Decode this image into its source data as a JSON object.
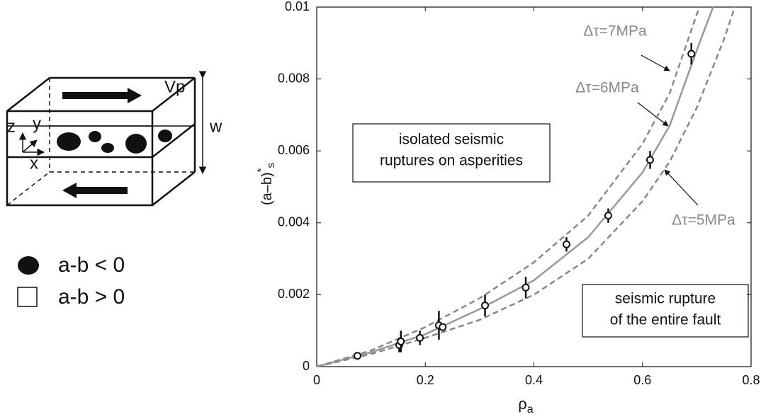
{
  "diagram": {
    "labels": {
      "vp": "Vp",
      "w": "w",
      "z": "z",
      "y": "y",
      "x": "x"
    },
    "legend": [
      "a-b < 0",
      "a-b > 0"
    ]
  },
  "chart_data": {
    "type": "scatter",
    "xlabel": "ρ",
    "xlabel_sub": "a",
    "ylabel": "(a–b)",
    "ylabel_sup": "*",
    "ylabel_sub": "s",
    "xlim": [
      0,
      0.8
    ],
    "xticks": [
      0,
      0.2,
      0.4,
      0.6,
      0.8
    ],
    "ylim": [
      0,
      0.01
    ],
    "yticks": [
      0,
      0.002,
      0.004,
      0.006,
      0.008,
      0.01
    ],
    "points": {
      "color": "#111",
      "x": [
        0.075,
        0.152,
        0.155,
        0.19,
        0.225,
        0.232,
        0.31,
        0.385,
        0.46,
        0.537,
        0.614,
        0.69
      ],
      "values": [
        0.0003,
        0.0006,
        0.0007,
        0.0008,
        0.00115,
        0.0011,
        0.0017,
        0.0022,
        0.0034,
        0.0042,
        0.00575,
        0.0087
      ],
      "errors": [
        5e-05,
        0.0002,
        0.0003,
        0.0002,
        0.0004,
        0.0001,
        0.0003,
        0.0003,
        0.0002,
        0.0002,
        0.00025,
        0.0003
      ]
    },
    "series": [
      {
        "name": "Δτ=7MPa",
        "color": "#888",
        "dashed": true,
        "x": [
          0,
          0.1,
          0.2,
          0.3,
          0.4,
          0.5,
          0.6,
          0.65,
          0.7,
          0.705
        ],
        "values": [
          0,
          0.00045,
          0.0011,
          0.0019,
          0.0029,
          0.0042,
          0.0062,
          0.0076,
          0.0098,
          0.01
        ]
      },
      {
        "name": "Δτ=6MPa",
        "color": "#999",
        "dashed": false,
        "x": [
          0,
          0.1,
          0.2,
          0.3,
          0.4,
          0.5,
          0.6,
          0.65,
          0.7,
          0.73
        ],
        "values": [
          0,
          0.0004,
          0.0009,
          0.0016,
          0.0024,
          0.0036,
          0.0054,
          0.0067,
          0.0088,
          0.01
        ]
      },
      {
        "name": "Δτ=5MPa",
        "color": "#888",
        "dashed": true,
        "x": [
          0,
          0.1,
          0.2,
          0.3,
          0.4,
          0.5,
          0.6,
          0.65,
          0.7,
          0.75,
          0.77
        ],
        "values": [
          0,
          0.00035,
          0.0008,
          0.0013,
          0.002,
          0.003,
          0.0046,
          0.0057,
          0.0072,
          0.0091,
          0.01
        ]
      }
    ],
    "annotations": [
      [
        "isolated seismic",
        "ruptures on asperities"
      ],
      [
        "seismic rupture",
        "of the entire fault"
      ]
    ]
  }
}
